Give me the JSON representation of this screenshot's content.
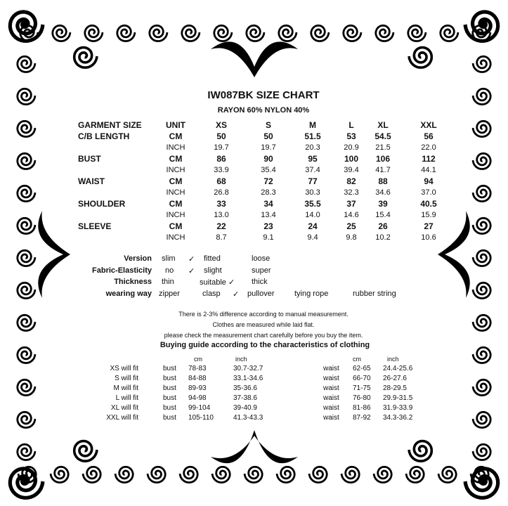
{
  "title": "IW087BK SIZE CHART",
  "subtitle": "RAYON 60% NYLON 40%",
  "size_table": {
    "header": [
      "GARMENT SIZE",
      "UNIT",
      "XS",
      "S",
      "M",
      "L",
      "XL",
      "XXL"
    ],
    "rows": [
      {
        "label": "C/B LENGTH",
        "cm_unit": "CM",
        "cm": [
          "50",
          "50",
          "51.5",
          "53",
          "54.5",
          "56"
        ],
        "inch_unit": "INCH",
        "inch": [
          "19.7",
          "19.7",
          "20.3",
          "20.9",
          "21.5",
          "22.0"
        ]
      },
      {
        "label": "BUST",
        "cm_unit": "CM",
        "cm": [
          "86",
          "90",
          "95",
          "100",
          "106",
          "112"
        ],
        "inch_unit": "INCH",
        "inch": [
          "33.9",
          "35.4",
          "37.4",
          "39.4",
          "41.7",
          "44.1"
        ]
      },
      {
        "label": "WAIST",
        "cm_unit": "CM",
        "cm": [
          "68",
          "72",
          "77",
          "82",
          "88",
          "94"
        ],
        "inch_unit": "INCH",
        "inch": [
          "26.8",
          "28.3",
          "30.3",
          "32.3",
          "34.6",
          "37.0"
        ]
      },
      {
        "label": "SHOULDER",
        "cm_unit": "CM",
        "cm": [
          "33",
          "34",
          "35.5",
          "37",
          "39",
          "40.5"
        ],
        "inch_unit": "INCH",
        "inch": [
          "13.0",
          "13.4",
          "14.0",
          "14.6",
          "15.4",
          "15.9"
        ]
      },
      {
        "label": "SLEEVE",
        "cm_unit": "CM",
        "cm": [
          "22",
          "23",
          "24",
          "25",
          "26",
          "27"
        ],
        "inch_unit": "INCH",
        "inch": [
          "8.7",
          "9.1",
          "9.4",
          "9.8",
          "10.2",
          "10.6"
        ]
      }
    ]
  },
  "features": [
    {
      "label": "Version",
      "options": [
        "slim",
        "✓",
        "fitted",
        "loose"
      ]
    },
    {
      "label": "Fabric-Elasticity",
      "options": [
        "no",
        "✓",
        "slight",
        "super"
      ]
    },
    {
      "label": "Thickness",
      "options": [
        "thin",
        "suitable ✓",
        "thick"
      ]
    },
    {
      "label": "wearing way",
      "options": [
        "zipper",
        "clasp",
        "✓",
        "pullover",
        "tying rope",
        "rubber string"
      ]
    }
  ],
  "notes": [
    "There is 2-3% difference according to manual measurement.",
    "Clothes are measured while laid flat.",
    "please check the measurement chart carefully before you buy the item."
  ],
  "guide": {
    "title": "Buying guide according to the characteristics of clothing",
    "bust_header": {
      "cm": "cm",
      "inch": "inch"
    },
    "waist_header": {
      "cm": "cm",
      "inch": "inch"
    },
    "rows": [
      {
        "label": "XS will  fit",
        "bust": "bust",
        "bust_cm": "78-83",
        "bust_inch": "30.7-32.7",
        "waist": "waist",
        "waist_cm": "62-65",
        "waist_inch": "24.4-25.6"
      },
      {
        "label": "S will  fit",
        "bust": "bust",
        "bust_cm": "84-88",
        "bust_inch": "33.1-34.6",
        "waist": "waist",
        "waist_cm": "66-70",
        "waist_inch": "26-27.6"
      },
      {
        "label": "M will fit",
        "bust": "bust",
        "bust_cm": "89-93",
        "bust_inch": "35-36.6",
        "waist": "waist",
        "waist_cm": "71-75",
        "waist_inch": "28-29.5"
      },
      {
        "label": "L will fit",
        "bust": "bust",
        "bust_cm": "94-98",
        "bust_inch": "37-38.6",
        "waist": "waist",
        "waist_cm": "76-80",
        "waist_inch": "29.9-31.5"
      },
      {
        "label": "XL will fit",
        "bust": "bust",
        "bust_cm": "99-104",
        "bust_inch": "39-40.9",
        "waist": "waist",
        "waist_cm": "81-86",
        "waist_inch": "31.9-33.9"
      },
      {
        "label": "XXL will fit",
        "bust": "bust",
        "bust_cm": "105-110",
        "bust_inch": "41.3-43.3",
        "waist": "waist",
        "waist_cm": "87-92",
        "waist_inch": "34.3-36.2"
      }
    ]
  },
  "colors": {
    "text": "#111111",
    "ornament": "#000000",
    "background": "#ffffff"
  }
}
